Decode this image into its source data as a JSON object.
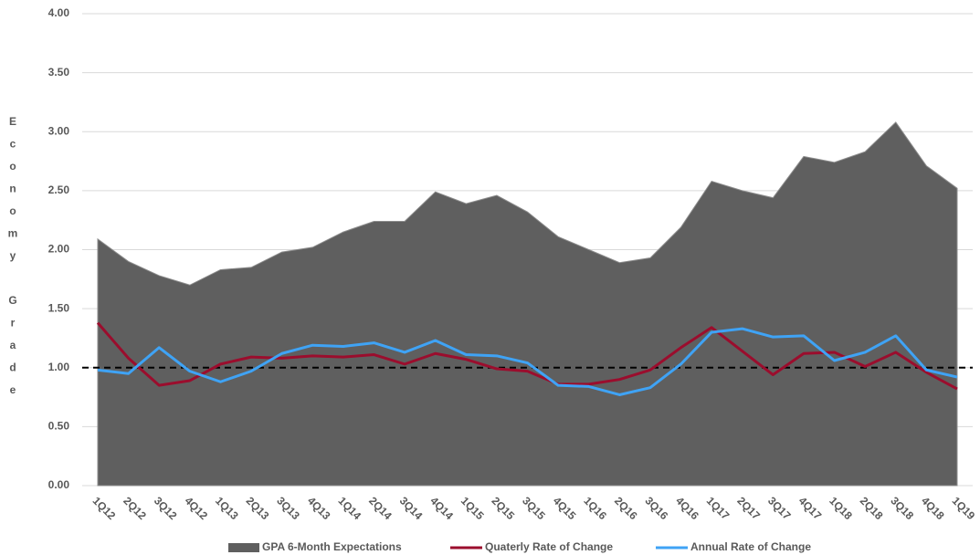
{
  "chart_data": {
    "type": "area-lines",
    "y_label": "Economy Grade",
    "categories": [
      "1Q12",
      "2Q12",
      "3Q12",
      "4Q12",
      "1Q13",
      "2Q13",
      "3Q13",
      "4Q13",
      "1Q14",
      "2Q14",
      "3Q14",
      "4Q14",
      "1Q15",
      "2Q15",
      "3Q15",
      "4Q15",
      "1Q16",
      "2Q16",
      "3Q16",
      "4Q16",
      "1Q17",
      "2Q17",
      "3Q17",
      "4Q17",
      "1Q18",
      "2Q18",
      "3Q18",
      "4Q18",
      "1Q19"
    ],
    "series": [
      {
        "name": "GPA 6-Month Expectations",
        "color": "#5f5f5f",
        "kind": "area",
        "values": [
          2.09,
          1.9,
          1.78,
          1.7,
          1.83,
          1.85,
          1.98,
          2.02,
          2.15,
          2.24,
          2.24,
          2.49,
          2.39,
          2.46,
          2.32,
          2.11,
          2.0,
          1.89,
          1.93,
          2.19,
          2.58,
          2.5,
          2.44,
          2.79,
          2.74,
          2.83,
          3.08,
          2.71,
          2.52
        ]
      },
      {
        "name": "Quaterly Rate of Change",
        "color": "#9b0d2d",
        "kind": "line",
        "values": [
          1.38,
          1.08,
          0.85,
          0.89,
          1.03,
          1.09,
          1.08,
          1.1,
          1.09,
          1.11,
          1.03,
          1.12,
          1.07,
          0.99,
          0.97,
          0.86,
          0.86,
          0.9,
          0.98,
          1.17,
          1.34,
          1.14,
          0.94,
          1.12,
          1.13,
          1.01,
          1.13,
          0.96,
          0.82
        ]
      },
      {
        "name": "Annual Rate of Change",
        "color": "#3fa3f5",
        "kind": "line",
        "values": [
          0.98,
          0.95,
          1.17,
          0.97,
          0.88,
          0.97,
          1.12,
          1.19,
          1.18,
          1.21,
          1.13,
          1.23,
          1.11,
          1.1,
          1.04,
          0.85,
          0.84,
          0.77,
          0.83,
          1.03,
          1.3,
          1.33,
          1.26,
          1.27,
          1.06,
          1.13,
          1.27,
          0.98,
          0.92
        ]
      }
    ],
    "reference_line": 1,
    "ylim": [
      0,
      4
    ],
    "yticks": [
      {
        "value": 0,
        "label": "0.00"
      },
      {
        "value": 0.5,
        "label": "0.50"
      },
      {
        "value": 1,
        "label": "1.00"
      },
      {
        "value": 1.5,
        "label": "1.50"
      },
      {
        "value": 2,
        "label": "2.00"
      },
      {
        "value": 2.5,
        "label": "2.50"
      },
      {
        "value": 3,
        "label": "3.00"
      },
      {
        "value": 3.5,
        "label": "3.50"
      },
      {
        "value": 4,
        "label": "4.00"
      }
    ],
    "grid": true,
    "legend": "bottom"
  }
}
